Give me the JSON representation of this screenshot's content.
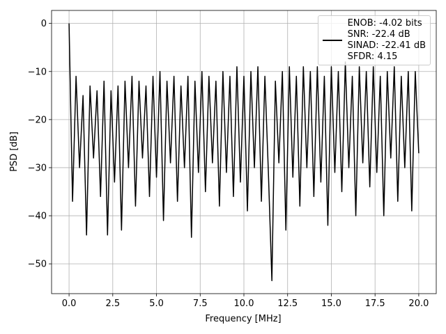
{
  "chart_data": {
    "type": "line",
    "xlabel": "Frequency [MHz]",
    "ylabel": "PSD [dB]",
    "xlim": [
      -1,
      21
    ],
    "ylim": [
      -56.2,
      2.7
    ],
    "xticks": [
      {
        "value": 0,
        "label": "0.0"
      },
      2.5,
      {
        "value": 5,
        "label": "5.0"
      },
      7.5,
      {
        "value": 10,
        "label": "10.0"
      },
      12.5,
      {
        "value": 15,
        "label": "15.0"
      },
      17.5,
      {
        "value": 20,
        "label": "20.0"
      }
    ],
    "yticks": [
      0,
      {
        "value": -10,
        "label": "−10"
      },
      {
        "value": -20,
        "label": "−20"
      },
      {
        "value": -30,
        "label": "−30"
      },
      {
        "value": -40,
        "label": "−40"
      },
      {
        "value": -50,
        "label": "−50"
      }
    ],
    "grid": true,
    "legend": "upper right",
    "x": [
      0,
      0.2,
      0.4,
      0.6,
      0.8,
      1,
      1.2,
      1.4,
      1.6,
      1.8,
      2,
      2.2,
      2.4,
      2.6,
      2.8,
      3,
      3.2,
      3.4,
      3.6,
      3.8,
      4,
      4.2,
      4.4,
      4.6,
      4.8,
      5,
      5.2,
      5.4,
      5.6,
      5.8,
      6,
      6.2,
      6.4,
      6.6,
      6.8,
      7,
      7.2,
      7.4,
      7.6,
      7.8,
      8,
      8.2,
      8.4,
      8.6,
      8.8,
      9,
      9.2,
      9.4,
      9.6,
      9.8,
      10,
      10.2,
      10.4,
      10.6,
      10.8,
      11,
      11.2,
      11.4,
      11.6,
      11.8,
      12,
      12.2,
      12.4,
      12.6,
      12.8,
      13,
      13.2,
      13.4,
      13.6,
      13.8,
      14,
      14.2,
      14.4,
      14.6,
      14.8,
      15,
      15.2,
      15.4,
      15.6,
      15.8,
      16,
      16.2,
      16.4,
      16.6,
      16.8,
      17,
      17.2,
      17.4,
      17.6,
      17.8,
      18,
      18.2,
      18.4,
      18.6,
      18.8,
      19,
      19.2,
      19.4,
      19.6,
      19.8,
      20
    ],
    "series": [
      {
        "name": "ENOB: -4.02 bits\nSNR: -22.4 dB\nSINAD: -22.41 dB\nSFDR: 4.15",
        "color": "#000000",
        "values": [
          0,
          -37,
          -11,
          -30,
          -15,
          -44,
          -13,
          -28,
          -14,
          -36,
          -12,
          -44,
          -14,
          -33,
          -13,
          -43,
          -12,
          -30,
          -11,
          -38,
          -12,
          -28,
          -13,
          -36,
          -11,
          -32,
          -10,
          -41,
          -12,
          -29,
          -11,
          -37,
          -13,
          -30,
          -11,
          -44.5,
          -12,
          -31,
          -10,
          -35,
          -11,
          -29,
          -12,
          -38,
          -10,
          -31,
          -11,
          -36,
          -9,
          -33,
          -11,
          -39,
          -10,
          -30,
          -9,
          -37,
          -11,
          -31,
          -53.5,
          -12,
          -29,
          -10,
          -43,
          -9,
          -32,
          -11,
          -38,
          -9,
          -30,
          -10,
          -36,
          -9,
          -33,
          -11,
          -42,
          -9,
          -31,
          -10,
          -35,
          -8,
          -30,
          -11,
          -40,
          -9,
          -29,
          -10,
          -34,
          -9,
          -31,
          -11,
          -40,
          -10,
          -28,
          -9,
          -37,
          -11,
          -30,
          -10,
          -39,
          -10,
          -27
        ]
      }
    ]
  }
}
